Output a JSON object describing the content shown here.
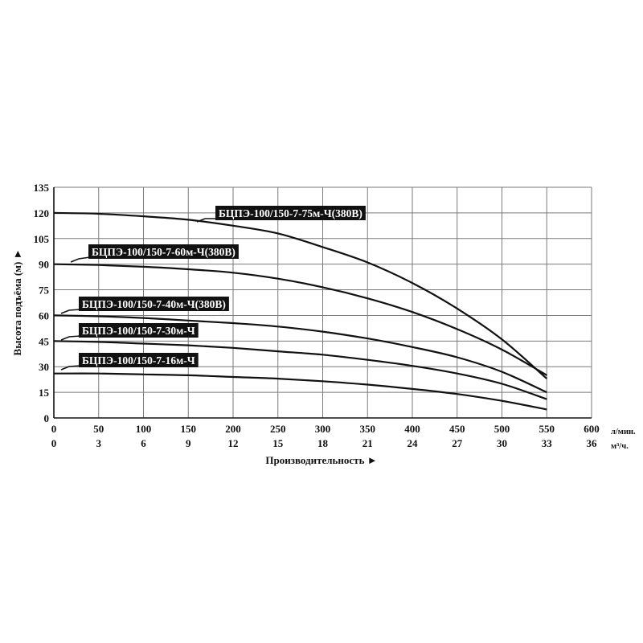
{
  "chart_data": {
    "type": "line",
    "xlabel": "Производительность ►",
    "ylabel": "Высота подъёма (м) ►",
    "x_unit": "л/мин.",
    "x2_unit": "м³/ч.",
    "xlim": [
      0,
      600
    ],
    "ylim": [
      0,
      135
    ],
    "x_ticks": [
      "0",
      "50",
      "100",
      "150",
      "200",
      "250",
      "300",
      "350",
      "400",
      "450",
      "500",
      "550",
      "600"
    ],
    "x2_ticks": [
      "0",
      "3",
      "6",
      "9",
      "12",
      "15",
      "18",
      "21",
      "24",
      "27",
      "30",
      "33",
      "36"
    ],
    "y_ticks": [
      "0",
      "15",
      "30",
      "45",
      "60",
      "75",
      "90",
      "105",
      "120",
      "135"
    ],
    "grid": true,
    "legend": "inline labels",
    "series": [
      {
        "name": "БЦПЭ-100/150-7-75м-Ч(380В)",
        "x": [
          0,
          50,
          100,
          150,
          200,
          250,
          300,
          350,
          400,
          450,
          500,
          550
        ],
        "y": [
          120,
          119.5,
          118,
          116,
          112.5,
          108,
          100,
          91,
          79,
          64,
          46,
          23
        ]
      },
      {
        "name": "БЦПЭ-100/150-7-60м-Ч(380В)",
        "x": [
          0,
          50,
          100,
          150,
          200,
          250,
          300,
          350,
          400,
          450,
          500,
          550
        ],
        "y": [
          90,
          89.5,
          88.5,
          87,
          85,
          81.5,
          76.5,
          70,
          62,
          52,
          40,
          25
        ]
      },
      {
        "name": "БЦПЭ-100/150-7-40м-Ч(380В)",
        "x": [
          0,
          50,
          100,
          150,
          200,
          250,
          300,
          350,
          400,
          450,
          500,
          550
        ],
        "y": [
          60,
          59.5,
          58.5,
          57,
          55.5,
          53.5,
          50.5,
          46.5,
          41.5,
          35.5,
          27,
          15
        ]
      },
      {
        "name": "БЦПЭ-100/150-7-30м-Ч",
        "x": [
          0,
          50,
          100,
          150,
          200,
          250,
          300,
          350,
          400,
          450,
          500,
          550
        ],
        "y": [
          45,
          44.5,
          43.5,
          42.5,
          41,
          39,
          37,
          34,
          30.5,
          26,
          20,
          11
        ]
      },
      {
        "name": "БЦПЭ-100/150-7-16м-Ч",
        "x": [
          0,
          50,
          100,
          150,
          200,
          250,
          300,
          350,
          400,
          450,
          500,
          550
        ],
        "y": [
          26,
          26,
          25.5,
          25,
          24,
          23,
          21.5,
          19.5,
          17,
          14,
          10,
          5
        ]
      }
    ]
  }
}
